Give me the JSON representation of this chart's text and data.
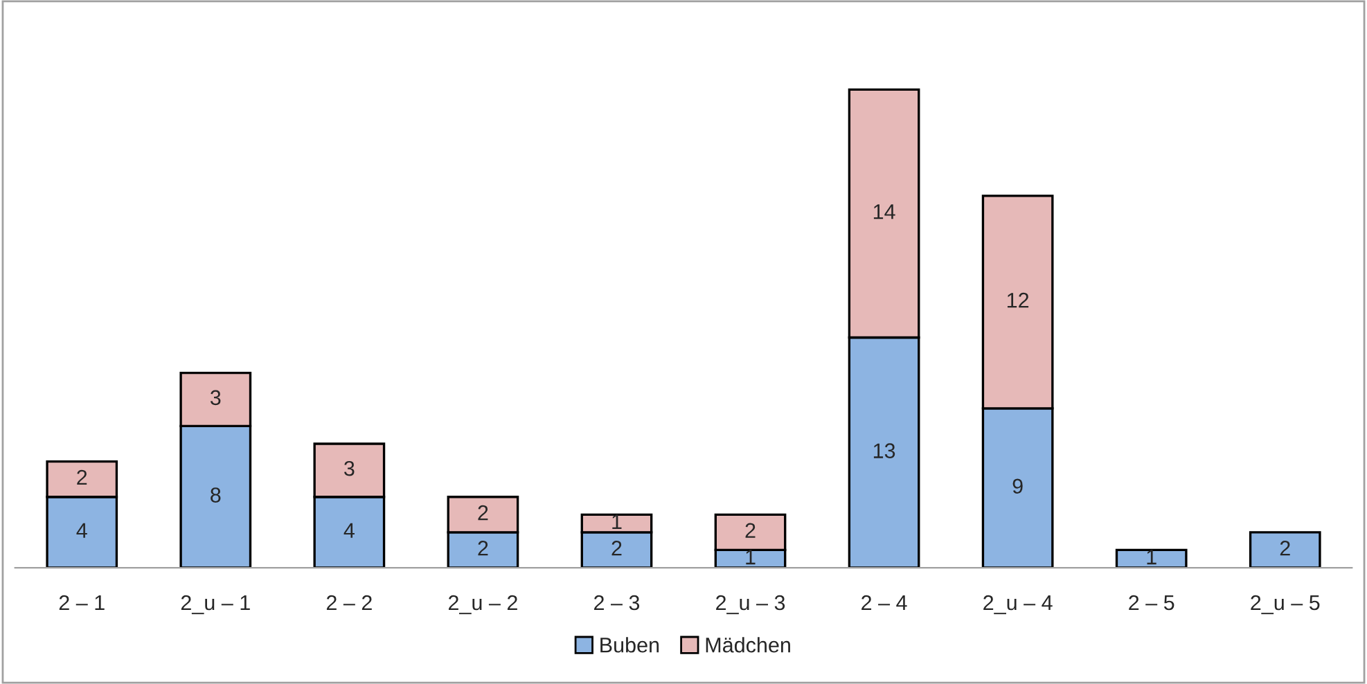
{
  "chart_data": {
    "type": "bar",
    "stacked": true,
    "data_labels": true,
    "legend": "bottom",
    "grid": false,
    "categories": [
      "2 – 1",
      "2_u – 1",
      "2 – 2",
      "2_u – 2",
      "2 – 3",
      "2_u – 3",
      "2 – 4",
      "2_u – 4",
      "2 – 5",
      "2_u – 5"
    ],
    "series": [
      {
        "name": "Buben",
        "color": "#8db4e2",
        "values": [
          4,
          8,
          4,
          2,
          2,
          1,
          13,
          9,
          1,
          2
        ]
      },
      {
        "name": "Mädchen",
        "color": "#e6b9b8",
        "values": [
          2,
          3,
          3,
          2,
          1,
          2,
          14,
          12,
          null,
          null
        ]
      }
    ]
  }
}
